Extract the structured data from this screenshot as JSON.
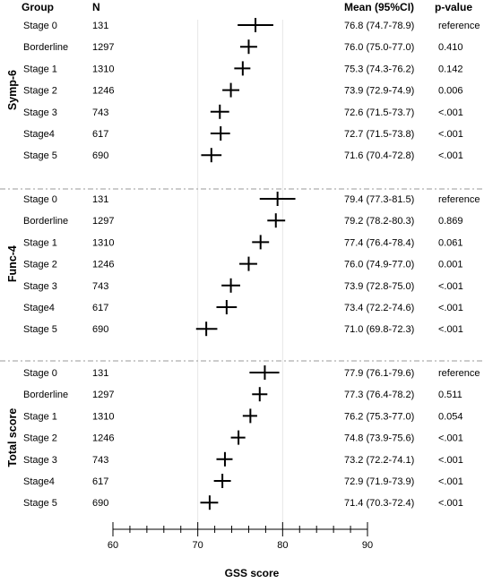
{
  "headers": {
    "group": "Group",
    "n": "N",
    "mean": "Mean (95%CI)",
    "p": "p-value"
  },
  "chart_data": {
    "type": "forest",
    "xlabel": "GSS score",
    "xlim": [
      60,
      90
    ],
    "major_ticks": [
      60,
      70,
      80,
      90
    ],
    "minor_tick_step": 2,
    "reference_lines": [
      70,
      80
    ],
    "sections": [
      {
        "name": "Symp-6",
        "rows": [
          {
            "group": "Stage 0",
            "n": "131",
            "mean": 76.8,
            "lo": 74.7,
            "hi": 78.9,
            "ci_text": "76.8 (74.7-78.9)",
            "p": "reference"
          },
          {
            "group": "Borderline",
            "n": "1297",
            "mean": 76.0,
            "lo": 75.0,
            "hi": 77.0,
            "ci_text": "76.0 (75.0-77.0)",
            "p": "0.410"
          },
          {
            "group": "Stage 1",
            "n": "1310",
            "mean": 75.3,
            "lo": 74.3,
            "hi": 76.2,
            "ci_text": "75.3 (74.3-76.2)",
            "p": "0.142"
          },
          {
            "group": "Stage 2",
            "n": "1246",
            "mean": 73.9,
            "lo": 72.9,
            "hi": 74.9,
            "ci_text": "73.9 (72.9-74.9)",
            "p": "0.006"
          },
          {
            "group": "Stage 3",
            "n": "743",
            "mean": 72.6,
            "lo": 71.5,
            "hi": 73.7,
            "ci_text": "72.6 (71.5-73.7)",
            "p": "<.001"
          },
          {
            "group": "Stage4",
            "n": "617",
            "mean": 72.7,
            "lo": 71.5,
            "hi": 73.8,
            "ci_text": "72.7 (71.5-73.8)",
            "p": "<.001"
          },
          {
            "group": "Stage 5",
            "n": "690",
            "mean": 71.6,
            "lo": 70.4,
            "hi": 72.8,
            "ci_text": "71.6 (70.4-72.8)",
            "p": "<.001"
          }
        ]
      },
      {
        "name": "Func-4",
        "rows": [
          {
            "group": "Stage 0",
            "n": "131",
            "mean": 79.4,
            "lo": 77.3,
            "hi": 81.5,
            "ci_text": "79.4 (77.3-81.5)",
            "p": "reference"
          },
          {
            "group": "Borderline",
            "n": "1297",
            "mean": 79.2,
            "lo": 78.2,
            "hi": 80.3,
            "ci_text": "79.2 (78.2-80.3)",
            "p": "0.869"
          },
          {
            "group": "Stage 1",
            "n": "1310",
            "mean": 77.4,
            "lo": 76.4,
            "hi": 78.4,
            "ci_text": "77.4 (76.4-78.4)",
            "p": "0.061"
          },
          {
            "group": "Stage 2",
            "n": "1246",
            "mean": 76.0,
            "lo": 74.9,
            "hi": 77.0,
            "ci_text": "76.0 (74.9-77.0)",
            "p": "0.001"
          },
          {
            "group": "Stage 3",
            "n": "743",
            "mean": 73.9,
            "lo": 72.8,
            "hi": 75.0,
            "ci_text": "73.9 (72.8-75.0)",
            "p": "<.001"
          },
          {
            "group": "Stage4",
            "n": "617",
            "mean": 73.4,
            "lo": 72.2,
            "hi": 74.6,
            "ci_text": "73.4 (72.2-74.6)",
            "p": "<.001"
          },
          {
            "group": "Stage 5",
            "n": "690",
            "mean": 71.0,
            "lo": 69.8,
            "hi": 72.3,
            "ci_text": "71.0 (69.8-72.3)",
            "p": "<.001"
          }
        ]
      },
      {
        "name": "Total score",
        "rows": [
          {
            "group": "Stage 0",
            "n": "131",
            "mean": 77.9,
            "lo": 76.1,
            "hi": 79.6,
            "ci_text": "77.9 (76.1-79.6)",
            "p": "reference"
          },
          {
            "group": "Borderline",
            "n": "1297",
            "mean": 77.3,
            "lo": 76.4,
            "hi": 78.2,
            "ci_text": "77.3 (76.4-78.2)",
            "p": "0.511"
          },
          {
            "group": "Stage 1",
            "n": "1310",
            "mean": 76.2,
            "lo": 75.3,
            "hi": 77.0,
            "ci_text": "76.2 (75.3-77.0)",
            "p": "0.054"
          },
          {
            "group": "Stage 2",
            "n": "1246",
            "mean": 74.8,
            "lo": 73.9,
            "hi": 75.6,
            "ci_text": "74.8 (73.9-75.6)",
            "p": "<.001"
          },
          {
            "group": "Stage 3",
            "n": "743",
            "mean": 73.2,
            "lo": 72.2,
            "hi": 74.1,
            "ci_text": "73.2 (72.2-74.1)",
            "p": "<.001"
          },
          {
            "group": "Stage4",
            "n": "617",
            "mean": 72.9,
            "lo": 71.9,
            "hi": 73.9,
            "ci_text": "72.9 (71.9-73.9)",
            "p": "<.001"
          },
          {
            "group": "Stage 5",
            "n": "690",
            "mean": 71.4,
            "lo": 70.3,
            "hi": 72.4,
            "ci_text": "71.4 (70.3-72.4)",
            "p": "<.001"
          }
        ]
      }
    ]
  },
  "colors": {
    "marks": "#000000",
    "grid": "#e6e6e6",
    "divider": "#9a9a9a"
  }
}
